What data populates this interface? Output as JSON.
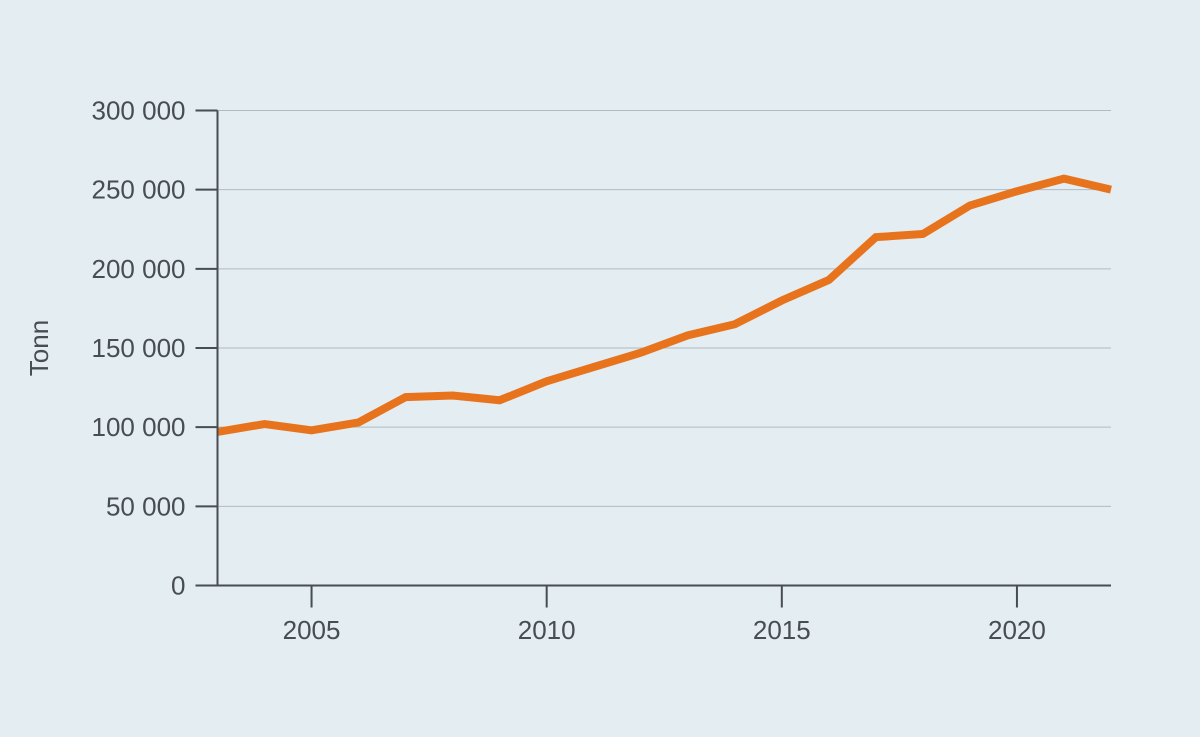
{
  "figure": {
    "background_color": "#e3edf2",
    "axis_color": "#474d52",
    "grid_color": "#aebcc3",
    "text_color": "#474d52"
  },
  "chart_data": {
    "type": "line",
    "title": "",
    "xlabel": "",
    "ylabel": "Tonn",
    "x": [
      2003,
      2004,
      2005,
      2006,
      2007,
      2008,
      2009,
      2010,
      2011,
      2012,
      2013,
      2014,
      2015,
      2016,
      2017,
      2018,
      2019,
      2020,
      2021,
      2022
    ],
    "series": [
      {
        "name": "Tonn",
        "color": "#e8731d",
        "values": [
          97000,
          102000,
          98000,
          103000,
          119000,
          120000,
          117000,
          129000,
          138000,
          147000,
          158000,
          165000,
          180000,
          193000,
          220000,
          222000,
          240000,
          249000,
          257000,
          250000
        ]
      }
    ],
    "xlim": [
      2003,
      2022
    ],
    "ylim": [
      0,
      300000
    ],
    "grid": true,
    "legend": "none",
    "yticks": [
      {
        "value": 0,
        "label": "0"
      },
      {
        "value": 50000,
        "label": "50 000"
      },
      {
        "value": 100000,
        "label": "100 000"
      },
      {
        "value": 150000,
        "label": "150 000"
      },
      {
        "value": 200000,
        "label": "200 000"
      },
      {
        "value": 250000,
        "label": "250 000"
      },
      {
        "value": 300000,
        "label": "300 000"
      }
    ],
    "xticks": [
      {
        "value": 2005,
        "label": "2005"
      },
      {
        "value": 2010,
        "label": "2010"
      },
      {
        "value": 2015,
        "label": "2015"
      },
      {
        "value": 2020,
        "label": "2020"
      }
    ]
  }
}
